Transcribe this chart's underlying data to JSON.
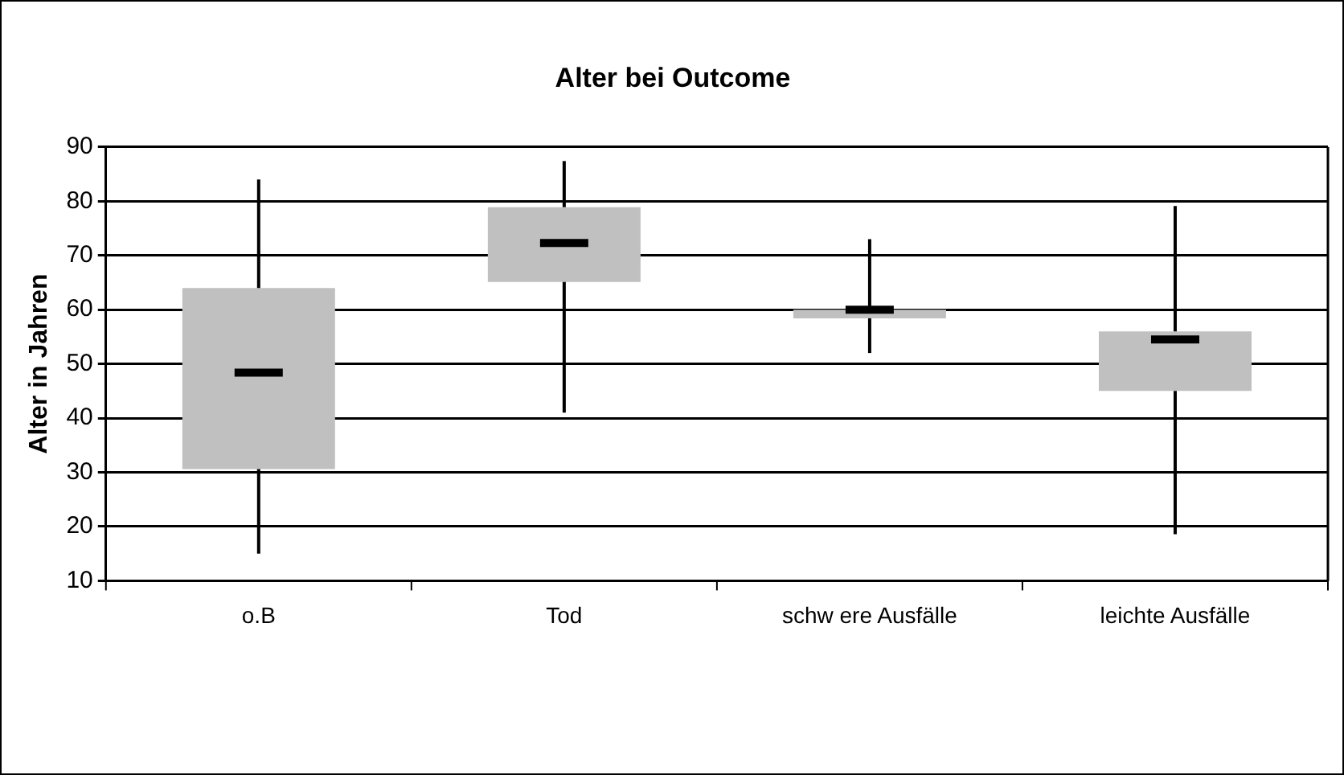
{
  "chart_data": {
    "type": "box",
    "title": "Alter bei Outcome",
    "ylabel": "Alter in Jahren",
    "categories": [
      "o.B",
      "Tod",
      "schw ere Ausfälle",
      "leichte Ausfälle"
    ],
    "boxes": [
      {
        "low": 15,
        "q1": 30.6,
        "median": 48.4,
        "q3": 64,
        "high": 84
      },
      {
        "low": 41,
        "q1": 65.1,
        "median": 72.3,
        "q3": 78.9,
        "high": 87.4
      },
      {
        "low": 52,
        "q1": 58.4,
        "median": 60,
        "q3": 60,
        "high": 73
      },
      {
        "low": 18.6,
        "q1": 45,
        "median": 54.5,
        "q3": 56,
        "high": 79.1
      }
    ],
    "color": "#c0c0c0",
    "ylim": [
      10,
      90
    ],
    "yticks": [
      10,
      20,
      30,
      40,
      50,
      60,
      70,
      80,
      90
    ],
    "grid": "y"
  }
}
